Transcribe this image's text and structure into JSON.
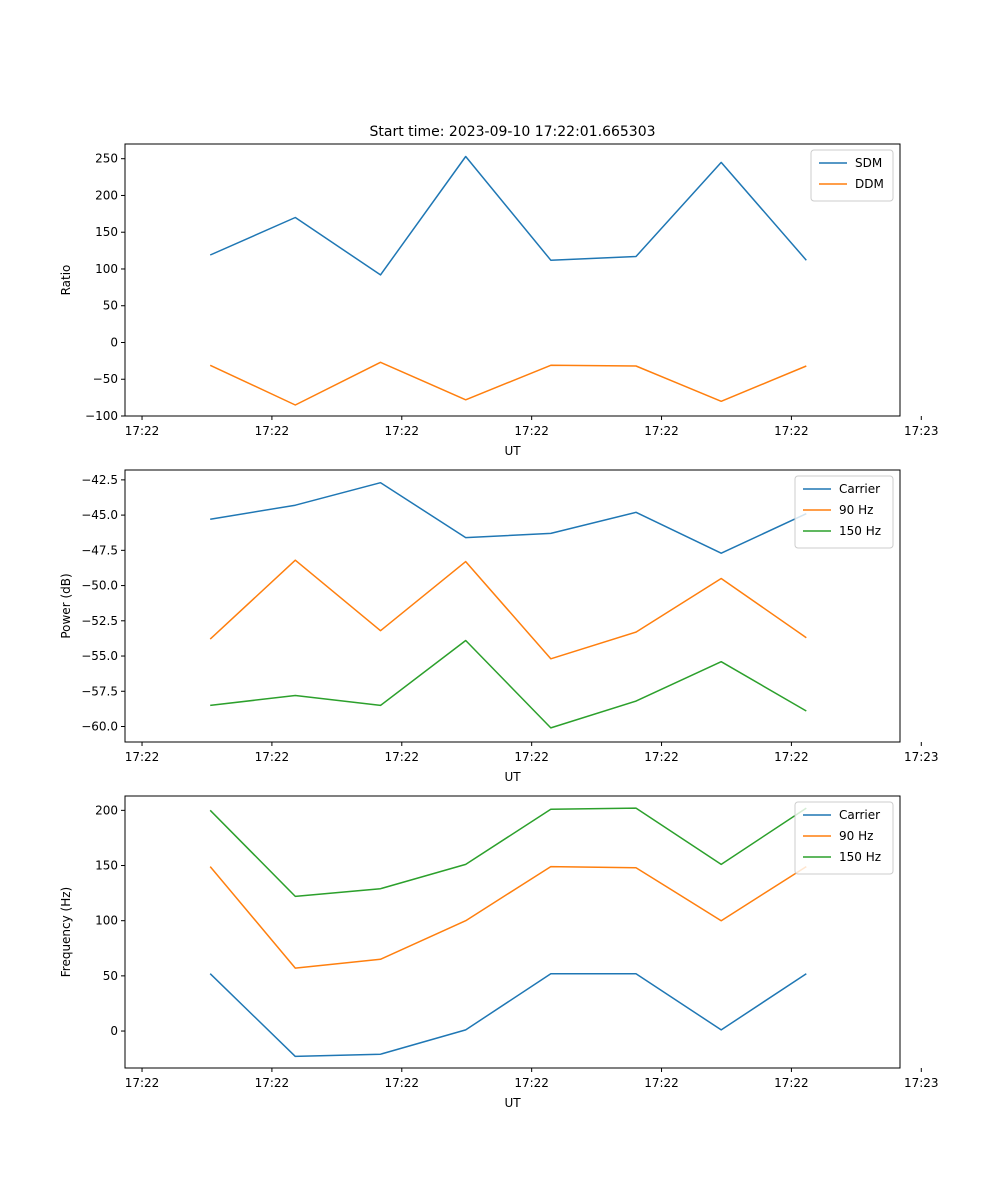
{
  "chart_data": [
    {
      "type": "line",
      "title": "Start time: 2023-09-10 17:22:01.665303",
      "xlabel": "UT",
      "ylabel": "Ratio",
      "xlim": [
        -0.2,
        8.9
      ],
      "ylim": [
        -100,
        270
      ],
      "x": [
        0.8,
        1.8,
        2.8,
        3.8,
        4.8,
        5.8,
        6.8,
        7.8
      ],
      "xticks": [
        {
          "pos": 0,
          "label": "17:22"
        },
        {
          "pos": 1.525,
          "label": "17:22"
        },
        {
          "pos": 3.05,
          "label": "17:22"
        },
        {
          "pos": 4.575,
          "label": "17:22"
        },
        {
          "pos": 6.1,
          "label": "17:22"
        },
        {
          "pos": 7.625,
          "label": "17:22"
        },
        {
          "pos": 9.15,
          "label": "17:23"
        }
      ],
      "yticks": [
        250,
        200,
        150,
        100,
        50,
        0,
        -50,
        -100
      ],
      "legend_position": "upper-right",
      "series": [
        {
          "name": "SDM",
          "color": "#1f77b4",
          "values": [
            119,
            170,
            92,
            253,
            112,
            117,
            245,
            112
          ]
        },
        {
          "name": "DDM",
          "color": "#ff7f0e",
          "values": [
            -31,
            -85,
            -27,
            -78,
            -31,
            -32,
            -80,
            -32
          ]
        }
      ]
    },
    {
      "type": "line",
      "title": "",
      "xlabel": "UT",
      "ylabel": "Power (dB)",
      "xlim": [
        -0.2,
        8.9
      ],
      "ylim": [
        -61.1,
        -41.8
      ],
      "x": [
        0.8,
        1.8,
        2.8,
        3.8,
        4.8,
        5.8,
        6.8,
        7.8
      ],
      "xticks": [
        {
          "pos": 0,
          "label": "17:22"
        },
        {
          "pos": 1.525,
          "label": "17:22"
        },
        {
          "pos": 3.05,
          "label": "17:22"
        },
        {
          "pos": 4.575,
          "label": "17:22"
        },
        {
          "pos": 6.1,
          "label": "17:22"
        },
        {
          "pos": 7.625,
          "label": "17:22"
        },
        {
          "pos": 9.15,
          "label": "17:23"
        }
      ],
      "yticks": [
        -42.5,
        -45.0,
        -47.5,
        -50.0,
        -52.5,
        -55.0,
        -57.5,
        -60.0
      ],
      "ytick_labels": [
        "−42.5",
        "−45.0",
        "−47.5",
        "−50.0",
        "−52.5",
        "−55.0",
        "−57.5",
        "−60.0"
      ],
      "legend_position": "upper-right",
      "series": [
        {
          "name": "Carrier",
          "color": "#1f77b4",
          "values": [
            -45.3,
            -44.3,
            -42.7,
            -46.6,
            -46.3,
            -44.8,
            -47.7,
            -44.9
          ]
        },
        {
          "name": "90 Hz",
          "color": "#ff7f0e",
          "values": [
            -53.8,
            -48.2,
            -53.2,
            -48.3,
            -55.2,
            -53.3,
            -49.5,
            -53.7
          ]
        },
        {
          "name": "150 Hz",
          "color": "#2ca02c",
          "values": [
            -58.5,
            -57.8,
            -58.5,
            -53.9,
            -60.1,
            -58.2,
            -55.4,
            -58.9
          ]
        }
      ]
    },
    {
      "type": "line",
      "title": "",
      "xlabel": "UT",
      "ylabel": "Frequency (Hz)",
      "xlim": [
        -0.2,
        8.9
      ],
      "ylim": [
        -33.5,
        213
      ],
      "x": [
        0.8,
        1.8,
        2.8,
        3.8,
        4.8,
        5.8,
        6.8,
        7.8
      ],
      "xticks": [
        {
          "pos": 0,
          "label": "17:22"
        },
        {
          "pos": 1.525,
          "label": "17:22"
        },
        {
          "pos": 3.05,
          "label": "17:22"
        },
        {
          "pos": 4.575,
          "label": "17:22"
        },
        {
          "pos": 6.1,
          "label": "17:22"
        },
        {
          "pos": 7.625,
          "label": "17:22"
        },
        {
          "pos": 9.15,
          "label": "17:23"
        }
      ],
      "yticks": [
        200,
        150,
        100,
        50,
        0
      ],
      "legend_position": "upper-right",
      "series": [
        {
          "name": "Carrier",
          "color": "#1f77b4",
          "values": [
            52,
            -23,
            -21,
            1,
            52,
            52,
            1,
            52
          ]
        },
        {
          "name": "90 Hz",
          "color": "#ff7f0e",
          "values": [
            149,
            57,
            65,
            100,
            149,
            148,
            100,
            149
          ]
        },
        {
          "name": "150 Hz",
          "color": "#2ca02c",
          "values": [
            200,
            122,
            129,
            151,
            201,
            202,
            151,
            202
          ]
        }
      ]
    }
  ]
}
